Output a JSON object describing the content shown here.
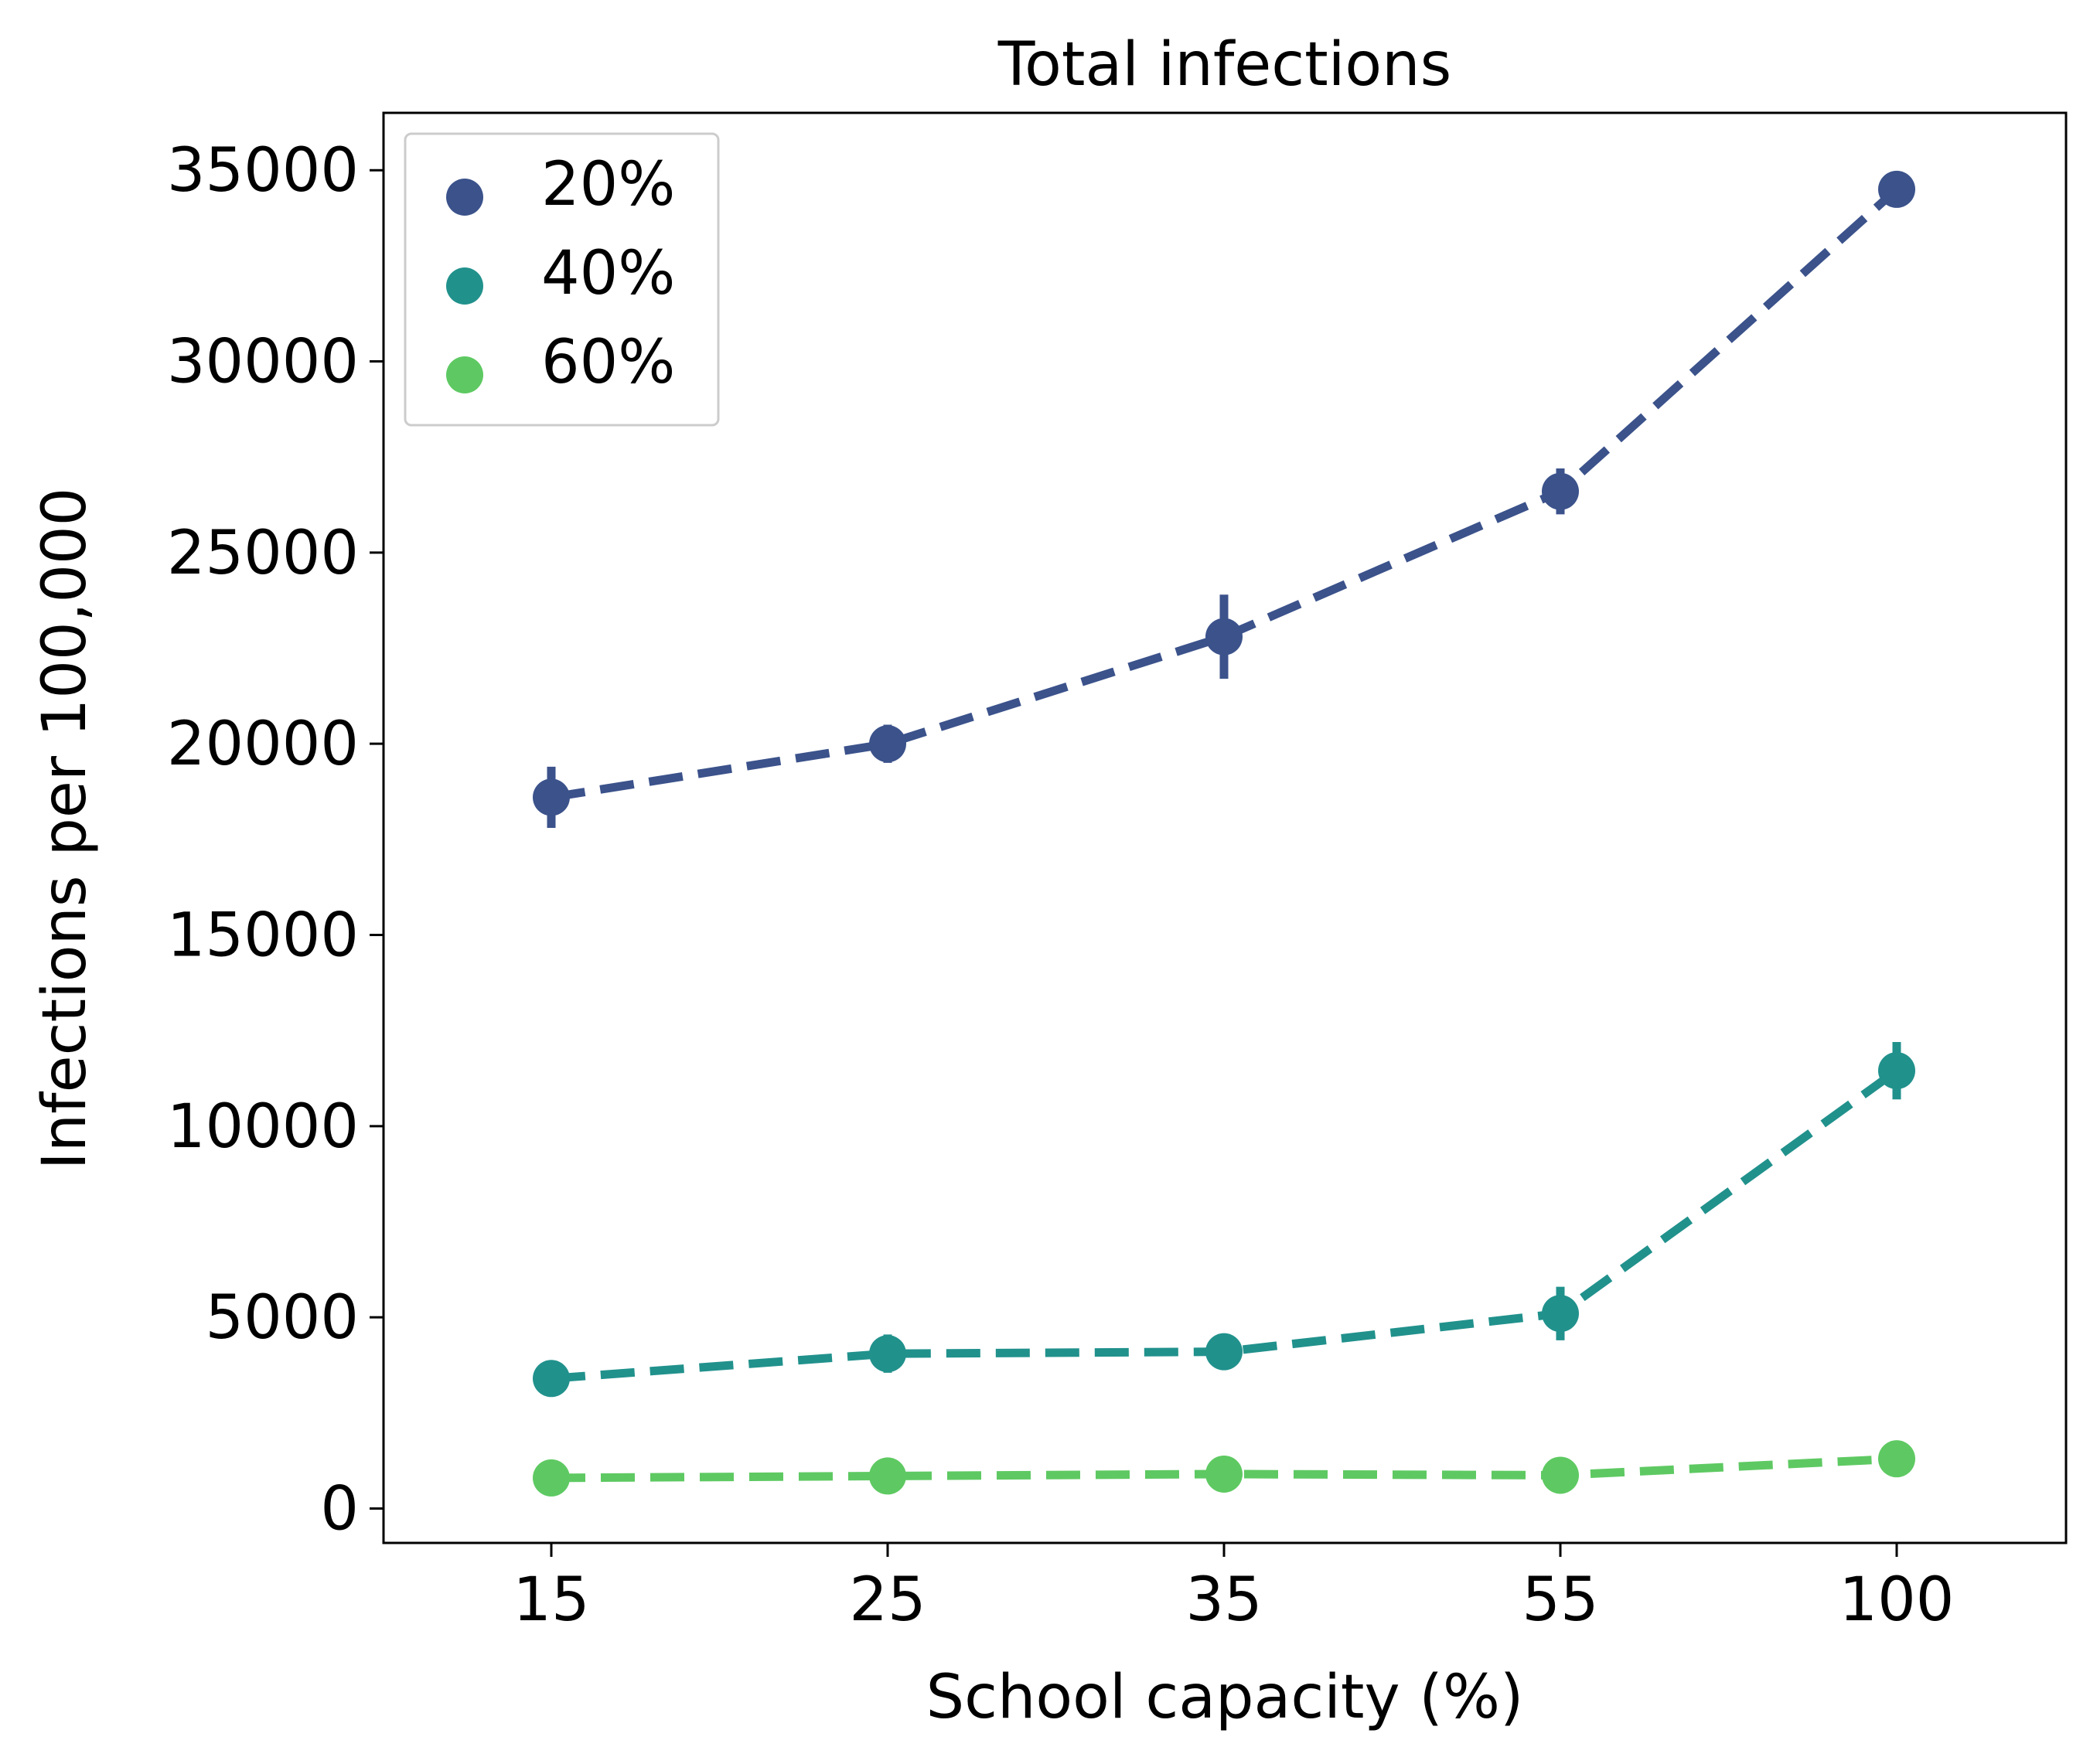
{
  "chart_data": {
    "type": "line",
    "title": "Total infections",
    "xlabel": "School capacity (%)",
    "ylabel": "Infections per 100,000",
    "categories": [
      "15",
      "25",
      "35",
      "55",
      "100"
    ],
    "yticks": [
      0,
      5000,
      10000,
      15000,
      20000,
      25000,
      30000,
      35000
    ],
    "ytick_labels": [
      "0",
      "5000",
      "10000",
      "15000",
      "20000",
      "25000",
      "30000",
      "35000"
    ],
    "ylim": [
      -900,
      36500
    ],
    "grid": false,
    "legend_position": "top-left",
    "line_style": "dashed",
    "series": [
      {
        "name": "20%",
        "color": "#3b528b",
        "values": [
          18600,
          20000,
          22800,
          26600,
          34500
        ],
        "error": [
          800,
          500,
          1100,
          600,
          200
        ]
      },
      {
        "name": "40%",
        "color": "#21918c",
        "values": [
          3400,
          4050,
          4100,
          5100,
          11450
        ],
        "error": [
          200,
          500,
          300,
          700,
          750
        ]
      },
      {
        "name": "60%",
        "color": "#5ec962",
        "values": [
          800,
          850,
          900,
          870,
          1300
        ],
        "error": [
          100,
          100,
          100,
          100,
          100
        ]
      }
    ]
  }
}
